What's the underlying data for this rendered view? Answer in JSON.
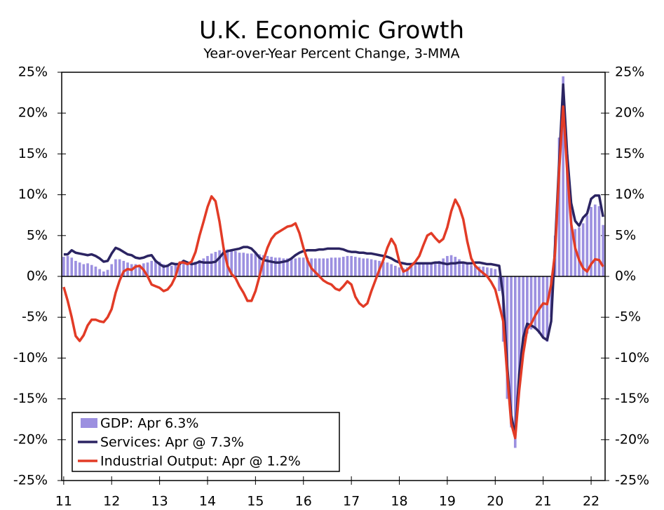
{
  "chart_data": {
    "type": "bar-line",
    "title": "U.K. Economic Growth",
    "subtitle": "Year-over-Year Percent Change, 3-MMA",
    "categories": [
      "11",
      null,
      null,
      null,
      null,
      null,
      null,
      null,
      null,
      null,
      null,
      null,
      "12",
      null,
      null,
      null,
      null,
      null,
      null,
      null,
      null,
      null,
      null,
      null,
      "13",
      null,
      null,
      null,
      null,
      null,
      null,
      null,
      null,
      null,
      null,
      null,
      "14",
      null,
      null,
      null,
      null,
      null,
      null,
      null,
      null,
      null,
      null,
      null,
      "15",
      null,
      null,
      null,
      null,
      null,
      null,
      null,
      null,
      null,
      null,
      null,
      "16",
      null,
      null,
      null,
      null,
      null,
      null,
      null,
      null,
      null,
      null,
      null,
      "17",
      null,
      null,
      null,
      null,
      null,
      null,
      null,
      null,
      null,
      null,
      null,
      "18",
      null,
      null,
      null,
      null,
      null,
      null,
      null,
      null,
      null,
      null,
      null,
      "19",
      null,
      null,
      null,
      null,
      null,
      null,
      null,
      null,
      null,
      null,
      null,
      "20",
      null,
      null,
      null,
      null,
      null,
      null,
      null,
      null,
      null,
      null,
      null,
      "21",
      null,
      null,
      null,
      null,
      null,
      null,
      null,
      null,
      null,
      null,
      null,
      "22",
      null,
      null,
      null
    ],
    "series": [
      {
        "name": "GDP: Apr 6.3%",
        "kind": "bar",
        "color": "#9c90e0",
        "values": [
          2.4,
          2.5,
          2.3,
          1.9,
          1.7,
          1.5,
          1.6,
          1.4,
          1.2,
          0.9,
          0.6,
          0.8,
          1.5,
          2.1,
          2.1,
          1.9,
          1.7,
          1.5,
          1.5,
          1.4,
          1.6,
          1.7,
          1.9,
          2.0,
          1.8,
          1.5,
          1.4,
          1.3,
          1.4,
          1.6,
          1.8,
          1.7,
          1.6,
          1.8,
          2.0,
          2.2,
          2.5,
          2.8,
          3.0,
          3.2,
          3.3,
          3.3,
          3.2,
          3.1,
          2.9,
          2.9,
          2.8,
          2.8,
          2.8,
          2.7,
          2.6,
          2.5,
          2.4,
          2.3,
          2.3,
          2.2,
          2.2,
          2.2,
          2.2,
          2.3,
          2.3,
          2.3,
          2.2,
          2.2,
          2.2,
          2.2,
          2.2,
          2.3,
          2.3,
          2.3,
          2.4,
          2.5,
          2.5,
          2.4,
          2.3,
          2.2,
          2.2,
          2.1,
          2.0,
          1.9,
          1.8,
          1.7,
          1.5,
          1.3,
          1.1,
          1.0,
          1.1,
          1.2,
          1.4,
          1.5,
          1.6,
          1.6,
          1.7,
          1.8,
          1.9,
          2.2,
          2.5,
          2.6,
          2.4,
          2.1,
          1.8,
          1.6,
          1.4,
          1.3,
          1.2,
          1.2,
          1.1,
          1.0,
          0.9,
          -1.8,
          -8,
          -15,
          -18.5,
          -21,
          -13,
          -9,
          -7,
          -6.5,
          -6.5,
          -7,
          -7.5,
          -8,
          -5,
          5,
          17,
          24.5,
          15,
          8,
          5.8,
          6,
          6.5,
          7.5,
          8.5,
          8.8,
          8.6,
          6.3
        ]
      },
      {
        "name": "Services: Apr @ 7.3%",
        "kind": "line",
        "color": "#2b2462",
        "values": [
          2.7,
          2.7,
          3.2,
          2.9,
          2.8,
          2.7,
          2.6,
          2.7,
          2.5,
          2.2,
          1.8,
          1.9,
          2.8,
          3.5,
          3.3,
          3.0,
          2.7,
          2.6,
          2.3,
          2.2,
          2.3,
          2.5,
          2.6,
          1.9,
          1.5,
          1.2,
          1.3,
          1.6,
          1.5,
          1.5,
          1.9,
          1.7,
          1.5,
          1.6,
          1.8,
          1.7,
          1.7,
          1.7,
          1.8,
          2.3,
          2.9,
          3.1,
          3.2,
          3.3,
          3.4,
          3.6,
          3.6,
          3.4,
          2.9,
          2.3,
          2.0,
          1.9,
          1.8,
          1.7,
          1.7,
          1.8,
          1.9,
          2.2,
          2.6,
          2.9,
          3.1,
          3.2,
          3.2,
          3.2,
          3.3,
          3.3,
          3.4,
          3.4,
          3.4,
          3.4,
          3.3,
          3.1,
          3.0,
          3.0,
          2.9,
          2.9,
          2.8,
          2.8,
          2.7,
          2.6,
          2.5,
          2.4,
          2.2,
          1.9,
          1.7,
          1.6,
          1.5,
          1.5,
          1.6,
          1.6,
          1.6,
          1.6,
          1.6,
          1.7,
          1.7,
          1.6,
          1.5,
          1.6,
          1.6,
          1.7,
          1.7,
          1.6,
          1.6,
          1.7,
          1.7,
          1.6,
          1.5,
          1.5,
          1.4,
          1.3,
          -2.5,
          -11,
          -17,
          -19.5,
          -12,
          -7.5,
          -5.8,
          -6,
          -6.3,
          -6.8,
          -7.5,
          -7.8,
          -5.5,
          4,
          14,
          23.5,
          15,
          9,
          6.8,
          6.2,
          7.2,
          7.7,
          9.5,
          9.9,
          9.9,
          7.3
        ]
      },
      {
        "name": "Industrial Output: Apr @ 1.2%",
        "kind": "line",
        "color": "#e23b26",
        "values": [
          -1.3,
          -3,
          -5,
          -7.3,
          -7.9,
          -7.2,
          -6,
          -5.3,
          -5.3,
          -5.5,
          -5.6,
          -5,
          -4,
          -2,
          -0.5,
          0.6,
          0.9,
          0.8,
          1.2,
          1.3,
          0.8,
          0,
          -1,
          -1.2,
          -1.4,
          -1.8,
          -1.6,
          -1,
          0,
          1.7,
          1.7,
          1.5,
          1.8,
          3,
          5,
          6.7,
          8.5,
          9.8,
          9.2,
          6.7,
          3.5,
          1.3,
          0.3,
          -0.2,
          -1.2,
          -2,
          -3,
          -3,
          -1.8,
          0,
          2,
          3.5,
          4.6,
          5.2,
          5.5,
          5.8,
          6.1,
          6.2,
          6.5,
          5.3,
          3.5,
          2,
          1,
          0.5,
          0,
          -0.5,
          -0.8,
          -1,
          -1.5,
          -1.7,
          -1.2,
          -0.6,
          -1,
          -2.5,
          -3.3,
          -3.7,
          -3.3,
          -1.8,
          -0.5,
          0.8,
          2,
          3.5,
          4.6,
          3.8,
          1.8,
          0.6,
          0.8,
          1.3,
          1.8,
          2.5,
          3.8,
          5,
          5.3,
          4.7,
          4.2,
          4.6,
          6,
          8,
          9.4,
          8.5,
          7,
          4.3,
          2.2,
          1.3,
          0.8,
          0.4,
          0,
          -0.7,
          -1.6,
          -3.5,
          -5.5,
          -12,
          -18,
          -19.8,
          -14,
          -9.5,
          -6.5,
          -5.8,
          -4.8,
          -4,
          -3.3,
          -3.4,
          -1,
          3,
          13,
          20.8,
          13,
          6.5,
          3.5,
          2,
          1,
          0.6,
          1.5,
          2.1,
          2,
          1.2
        ]
      }
    ],
    "ylim": [
      -25,
      25
    ],
    "yticks": [
      {
        "value": -25,
        "label": "-25%"
      },
      {
        "value": -20,
        "label": "-20%"
      },
      {
        "value": -15,
        "label": "-15%"
      },
      {
        "value": -10,
        "label": "-10%"
      },
      {
        "value": -5,
        "label": "-5%"
      },
      {
        "value": 0,
        "label": "0%"
      },
      {
        "value": 5,
        "label": "5%"
      },
      {
        "value": 10,
        "label": "10%"
      },
      {
        "value": 15,
        "label": "15%"
      },
      {
        "value": 20,
        "label": "20%"
      },
      {
        "value": 25,
        "label": "25%"
      }
    ],
    "y2lim": [
      -25,
      25
    ],
    "y2ticks": [
      {
        "value": -25,
        "label": "-25%"
      },
      {
        "value": -20,
        "label": "-20%"
      },
      {
        "value": -15,
        "label": "-15%"
      },
      {
        "value": -10,
        "label": "-10%"
      },
      {
        "value": -5,
        "label": "-5%"
      },
      {
        "value": 0,
        "label": "0%"
      },
      {
        "value": 5,
        "label": "5%"
      },
      {
        "value": 10,
        "label": "10%"
      },
      {
        "value": 15,
        "label": "15%"
      },
      {
        "value": 20,
        "label": "20%"
      },
      {
        "value": 25,
        "label": "25%"
      }
    ],
    "grid": false,
    "legend": "lower left"
  }
}
